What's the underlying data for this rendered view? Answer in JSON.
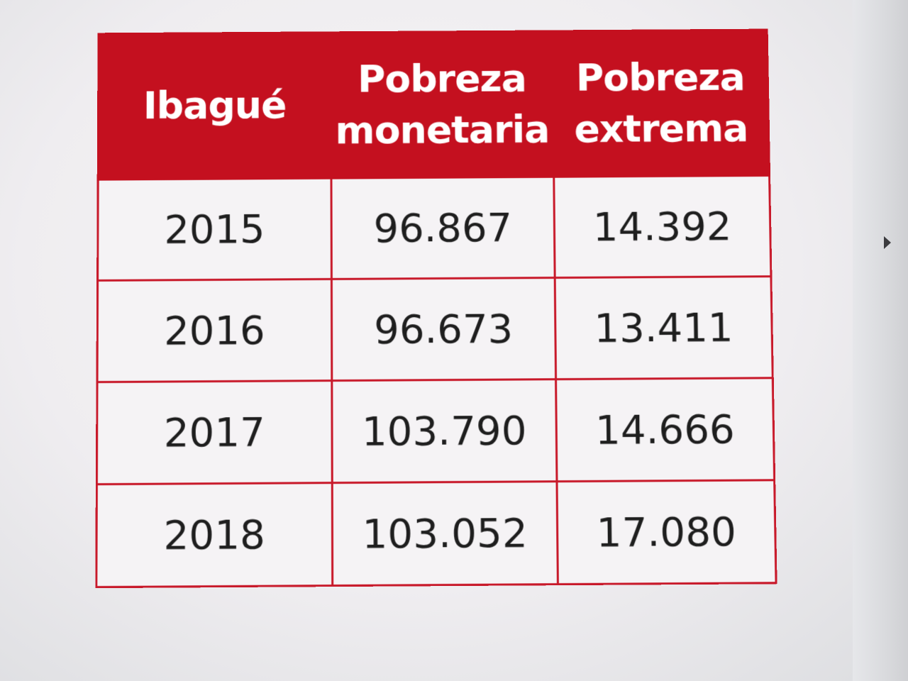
{
  "table": {
    "headers": [
      [
        "Ibagué"
      ],
      [
        "Pobreza",
        "monetaria"
      ],
      [
        "Pobreza",
        "extrema"
      ]
    ],
    "rows": [
      [
        "2015",
        "96.867",
        "14.392"
      ],
      [
        "2016",
        "96.673",
        "13.411"
      ],
      [
        "2017",
        "103.790",
        "14.666"
      ],
      [
        "2018",
        "103.052",
        "17.080"
      ]
    ]
  },
  "colors": {
    "header_bg": "#c4101f",
    "border": "#c8192a",
    "header_text": "#ffffff",
    "cell_text": "#1e1e1e"
  }
}
